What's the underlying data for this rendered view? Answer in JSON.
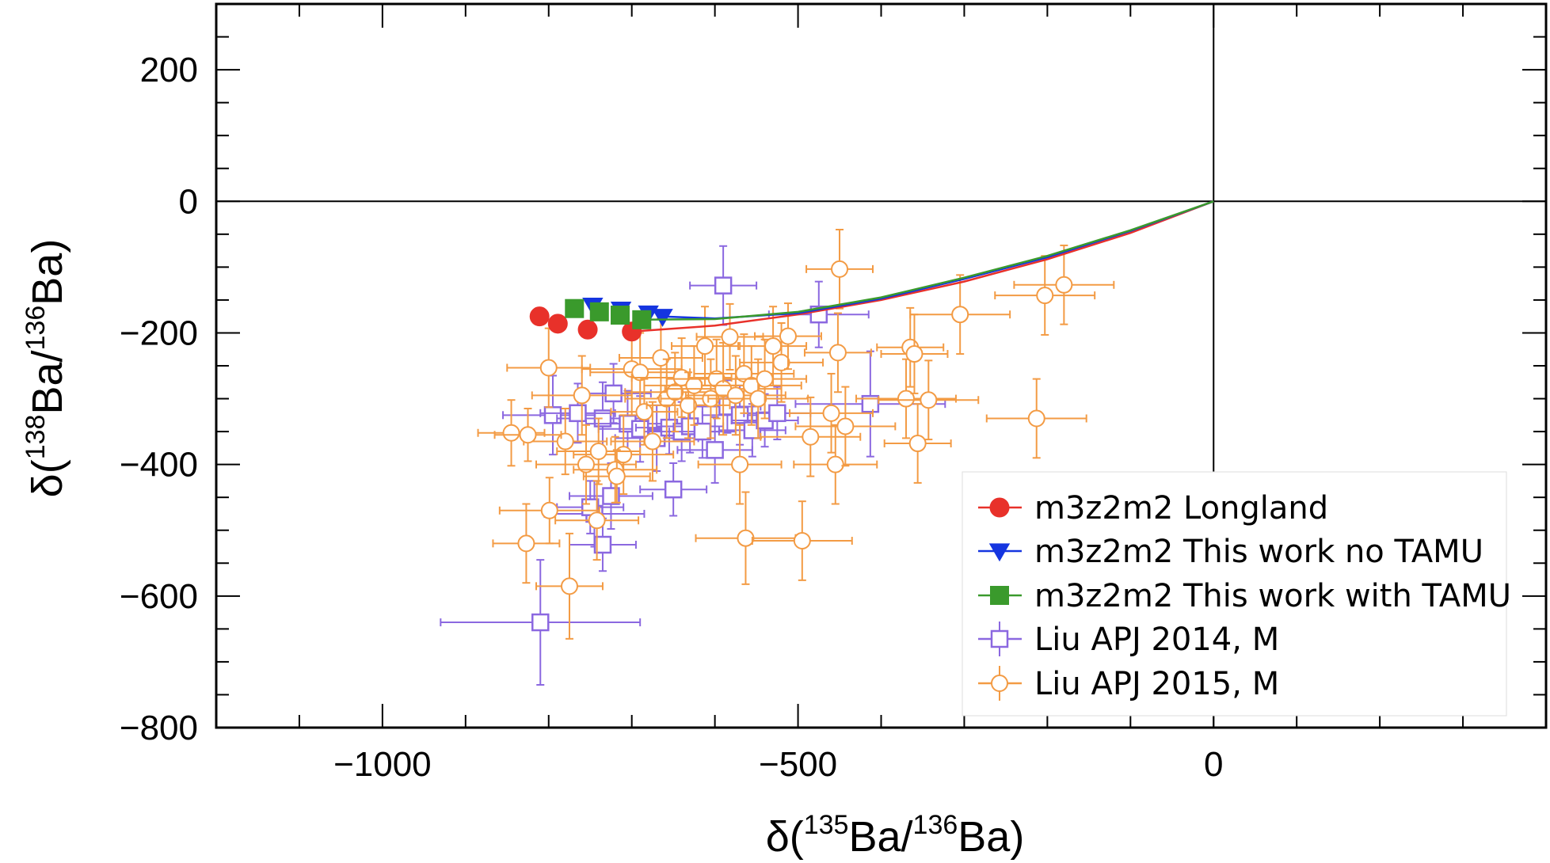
{
  "chart_data": {
    "type": "scatter",
    "xlabel": {
      "prefix": "δ(",
      "sup1": "135",
      "mid": "Ba/",
      "sup2": "136",
      "suffix": "Ba)"
    },
    "ylabel": {
      "prefix": "δ(",
      "sup1": "138",
      "mid": "Ba/",
      "sup2": "136",
      "suffix": "Ba)"
    },
    "xlim": [
      -1200,
      400
    ],
    "ylim": [
      -800,
      300
    ],
    "xticks": [
      {
        "value": -1000,
        "label": "−1000"
      },
      {
        "value": -500,
        "label": "−500"
      },
      {
        "value": 0,
        "label": "0"
      }
    ],
    "yticks": [
      {
        "value": -800,
        "label": "−800"
      },
      {
        "value": -600,
        "label": "−600"
      },
      {
        "value": -400,
        "label": "−400"
      },
      {
        "value": -200,
        "label": "−200"
      },
      {
        "value": 0,
        "label": "0"
      },
      {
        "value": 200,
        "label": "200"
      }
    ],
    "reference_lines": {
      "x": 0,
      "y": 0
    },
    "legend_position": "bottom-right",
    "series": [
      {
        "name": "m3z2m2 Longland",
        "color": "#e8312a",
        "marker": "circle-filled",
        "points": [
          [
            -811,
            -175
          ],
          [
            -789,
            -186
          ],
          [
            -753,
            -195
          ],
          [
            -700,
            -198
          ]
        ],
        "curve": [
          [
            -700,
            -198
          ],
          [
            -600,
            -189
          ],
          [
            -500,
            -172
          ],
          [
            -400,
            -150
          ],
          [
            -300,
            -122
          ],
          [
            -200,
            -88
          ],
          [
            -100,
            -48
          ],
          [
            0,
            0
          ]
        ]
      },
      {
        "name": "m3z2m2 This work no TAMU",
        "color": "#1535e0",
        "marker": "triangle-down-filled",
        "points": [
          [
            -747,
            -158
          ],
          [
            -713,
            -164
          ],
          [
            -680,
            -170
          ],
          [
            -663,
            -175
          ]
        ],
        "curve": [
          [
            -663,
            -175
          ],
          [
            -600,
            -178
          ],
          [
            -500,
            -170
          ],
          [
            -400,
            -148
          ],
          [
            -300,
            -118
          ],
          [
            -200,
            -85
          ],
          [
            -100,
            -45
          ],
          [
            0,
            0
          ]
        ]
      },
      {
        "name": "m3z2m2 This work with TAMU",
        "color": "#3a9a2c",
        "marker": "square-filled",
        "points": [
          [
            -769,
            -163
          ],
          [
            -739,
            -168
          ],
          [
            -714,
            -173
          ],
          [
            -688,
            -180
          ]
        ],
        "curve": [
          [
            -688,
            -180
          ],
          [
            -600,
            -179
          ],
          [
            -500,
            -168
          ],
          [
            -400,
            -146
          ],
          [
            -300,
            -116
          ],
          [
            -200,
            -83
          ],
          [
            -100,
            -44
          ],
          [
            0,
            0
          ]
        ]
      },
      {
        "name": "Liu APJ 2014, M",
        "color": "#8b68e0",
        "marker": "square-open",
        "points": [
          [
            -590,
            -128,
            40,
            60
          ],
          [
            -475,
            -172,
            60,
            50
          ],
          [
            -413,
            -308,
            90,
            80
          ],
          [
            -810,
            -640,
            120,
            95
          ],
          [
            -745,
            -475,
            60,
            50
          ],
          [
            -735,
            -522,
            40,
            40
          ],
          [
            -725,
            -448,
            50,
            50
          ],
          [
            -795,
            -325,
            60,
            60
          ],
          [
            -735,
            -330,
            55,
            55
          ],
          [
            -722,
            -292,
            45,
            45
          ],
          [
            -705,
            -338,
            50,
            50
          ],
          [
            -690,
            -346,
            50,
            50
          ],
          [
            -670,
            -360,
            50,
            50
          ],
          [
            -655,
            -344,
            40,
            40
          ],
          [
            -640,
            -350,
            45,
            45
          ],
          [
            -630,
            -342,
            40,
            40
          ],
          [
            -615,
            -350,
            40,
            40
          ],
          [
            -600,
            -378,
            45,
            50
          ],
          [
            -585,
            -312,
            40,
            40
          ],
          [
            -570,
            -325,
            45,
            45
          ],
          [
            -555,
            -348,
            40,
            40
          ],
          [
            -540,
            -333,
            40,
            40
          ],
          [
            -525,
            -322,
            40,
            40
          ],
          [
            -650,
            -438,
            40,
            40
          ],
          [
            -765,
            -322,
            45,
            45
          ],
          [
            -750,
            -465,
            40,
            40
          ]
        ]
      },
      {
        "name": "Liu APJ 2015, M",
        "color": "#f39b44",
        "marker": "circle-open",
        "points": [
          [
            -845,
            -352,
            40,
            50
          ],
          [
            -827,
            -520,
            40,
            60
          ],
          [
            -799,
            -470,
            60,
            50
          ],
          [
            -800,
            -253,
            50,
            60
          ],
          [
            -775,
            -585,
            40,
            80
          ],
          [
            -760,
            -295,
            60,
            60
          ],
          [
            -755,
            -400,
            60,
            60
          ],
          [
            -742,
            -485,
            50,
            60
          ],
          [
            -720,
            -408,
            50,
            50
          ],
          [
            -710,
            -385,
            60,
            60
          ],
          [
            -700,
            -255,
            60,
            70
          ],
          [
            -690,
            -260,
            60,
            60
          ],
          [
            -685,
            -320,
            40,
            50
          ],
          [
            -675,
            -365,
            50,
            60
          ],
          [
            -665,
            -238,
            50,
            60
          ],
          [
            -658,
            -300,
            50,
            60
          ],
          [
            -648,
            -290,
            60,
            60
          ],
          [
            -640,
            -268,
            60,
            60
          ],
          [
            -632,
            -310,
            50,
            50
          ],
          [
            -625,
            -280,
            60,
            60
          ],
          [
            -612,
            -220,
            40,
            60
          ],
          [
            -605,
            -300,
            60,
            60
          ],
          [
            -598,
            -270,
            60,
            60
          ],
          [
            -590,
            -285,
            70,
            70
          ],
          [
            -582,
            -206,
            40,
            50
          ],
          [
            -575,
            -295,
            60,
            60
          ],
          [
            -565,
            -262,
            60,
            60
          ],
          [
            -556,
            -280,
            60,
            60
          ],
          [
            -548,
            -300,
            60,
            60
          ],
          [
            -540,
            -270,
            50,
            60
          ],
          [
            -530,
            -220,
            40,
            60
          ],
          [
            -520,
            -245,
            50,
            60
          ],
          [
            -512,
            -205,
            40,
            50
          ],
          [
            -570,
            -400,
            50,
            60
          ],
          [
            -563,
            -512,
            60,
            70
          ],
          [
            -495,
            -516,
            60,
            60
          ],
          [
            -485,
            -358,
            60,
            60
          ],
          [
            -455,
            -400,
            50,
            60
          ],
          [
            -452,
            -230,
            40,
            60
          ],
          [
            -450,
            -103,
            40,
            60
          ],
          [
            -443,
            -342,
            60,
            60
          ],
          [
            -460,
            -322,
            50,
            60
          ],
          [
            -370,
            -300,
            60,
            60
          ],
          [
            -365,
            -222,
            40,
            60
          ],
          [
            -360,
            -232,
            40,
            60
          ],
          [
            -356,
            -368,
            40,
            60
          ],
          [
            -343,
            -302,
            60,
            60
          ],
          [
            -305,
            -172,
            60,
            60
          ],
          [
            -213,
            -330,
            60,
            60
          ],
          [
            -203,
            -143,
            60,
            60
          ],
          [
            -180,
            -127,
            60,
            60
          ],
          [
            -780,
            -365,
            50,
            50
          ],
          [
            -825,
            -355,
            40,
            40
          ],
          [
            -740,
            -380,
            50,
            50
          ],
          [
            -718,
            -418,
            40,
            40
          ]
        ]
      }
    ]
  }
}
